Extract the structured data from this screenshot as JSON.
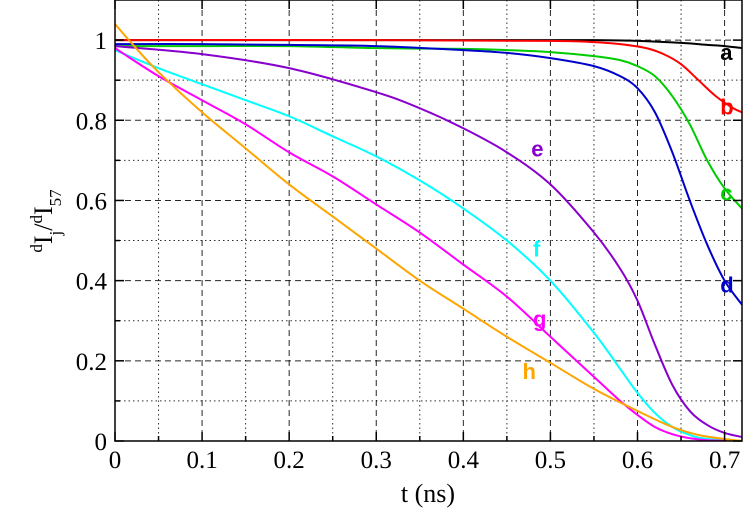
{
  "chart_data": {
    "type": "line",
    "title": "",
    "xlabel": "t (ns)",
    "ylabel": {
      "pre1": "d",
      "main1": "I",
      "sub1": "j",
      "slash": "/",
      "pre2": "d",
      "main2": "I",
      "sub2": "57"
    },
    "xlim": [
      0,
      0.72
    ],
    "ylim": [
      0,
      1.1
    ],
    "x_major_ticks": [
      0,
      0.1,
      0.2,
      0.3,
      0.4,
      0.5,
      0.6,
      0.7
    ],
    "x_tick_labels": [
      "0",
      "0.1",
      "0.2",
      "0.3",
      "0.4",
      "0.5",
      "0.6",
      "0.7"
    ],
    "x_minor_ticks": [
      0.05,
      0.15,
      0.25,
      0.35,
      0.45,
      0.55,
      0.65
    ],
    "y_major_ticks": [
      0,
      0.2,
      0.4,
      0.6,
      0.8,
      1.0
    ],
    "y_tick_labels": [
      "0",
      "0.2",
      "0.4",
      "0.6",
      "0.8",
      "1"
    ],
    "y_minor_ticks": [
      0.1,
      0.3,
      0.5,
      0.7,
      0.9
    ],
    "grid": true,
    "series": [
      {
        "name": "a",
        "color": "#000000",
        "label_pos": [
          0.695,
          0.95
        ],
        "points": [
          [
            0,
            1.0
          ],
          [
            0.2,
            1.0
          ],
          [
            0.4,
            1.0
          ],
          [
            0.55,
            1.0
          ],
          [
            0.6,
            0.998
          ],
          [
            0.65,
            0.993
          ],
          [
            0.68,
            0.988
          ],
          [
            0.7,
            0.985
          ],
          [
            0.72,
            0.98
          ]
        ]
      },
      {
        "name": "b",
        "color": "#ff0000",
        "label_pos": [
          0.695,
          0.815
        ],
        "points": [
          [
            0,
            1.0
          ],
          [
            0.3,
            1.0
          ],
          [
            0.5,
            0.998
          ],
          [
            0.55,
            0.995
          ],
          [
            0.58,
            0.99
          ],
          [
            0.61,
            0.98
          ],
          [
            0.63,
            0.965
          ],
          [
            0.65,
            0.94
          ],
          [
            0.67,
            0.9
          ],
          [
            0.69,
            0.86
          ],
          [
            0.71,
            0.83
          ],
          [
            0.72,
            0.82
          ]
        ]
      },
      {
        "name": "c",
        "color": "#00cc00",
        "label_pos": [
          0.695,
          0.6
        ],
        "points": [
          [
            0,
            0.985
          ],
          [
            0.1,
            0.985
          ],
          [
            0.2,
            0.985
          ],
          [
            0.3,
            0.98
          ],
          [
            0.4,
            0.978
          ],
          [
            0.45,
            0.975
          ],
          [
            0.5,
            0.97
          ],
          [
            0.55,
            0.96
          ],
          [
            0.58,
            0.95
          ],
          [
            0.6,
            0.935
          ],
          [
            0.62,
            0.91
          ],
          [
            0.64,
            0.86
          ],
          [
            0.66,
            0.79
          ],
          [
            0.68,
            0.7
          ],
          [
            0.7,
            0.63
          ],
          [
            0.72,
            0.58
          ]
        ]
      },
      {
        "name": "d",
        "color": "#0000cc",
        "label_pos": [
          0.695,
          0.37
        ],
        "points": [
          [
            0,
            0.99
          ],
          [
            0.1,
            0.99
          ],
          [
            0.2,
            0.988
          ],
          [
            0.3,
            0.985
          ],
          [
            0.4,
            0.975
          ],
          [
            0.45,
            0.968
          ],
          [
            0.5,
            0.955
          ],
          [
            0.55,
            0.935
          ],
          [
            0.58,
            0.91
          ],
          [
            0.6,
            0.88
          ],
          [
            0.62,
            0.82
          ],
          [
            0.64,
            0.72
          ],
          [
            0.66,
            0.6
          ],
          [
            0.68,
            0.49
          ],
          [
            0.7,
            0.4
          ],
          [
            0.72,
            0.34
          ]
        ]
      },
      {
        "name": "e",
        "color": "#8800cc",
        "label_pos": [
          0.478,
          0.71
        ],
        "points": [
          [
            0,
            0.985
          ],
          [
            0.1,
            0.965
          ],
          [
            0.2,
            0.93
          ],
          [
            0.3,
            0.87
          ],
          [
            0.35,
            0.83
          ],
          [
            0.4,
            0.78
          ],
          [
            0.45,
            0.72
          ],
          [
            0.5,
            0.64
          ],
          [
            0.55,
            0.52
          ],
          [
            0.58,
            0.43
          ],
          [
            0.6,
            0.35
          ],
          [
            0.62,
            0.24
          ],
          [
            0.64,
            0.14
          ],
          [
            0.66,
            0.075
          ],
          [
            0.68,
            0.04
          ],
          [
            0.7,
            0.02
          ],
          [
            0.72,
            0.01
          ]
        ]
      },
      {
        "name": "f",
        "color": "#00ffff",
        "label_pos": [
          0.48,
          0.46
        ],
        "points": [
          [
            0,
            0.975
          ],
          [
            0.05,
            0.93
          ],
          [
            0.1,
            0.89
          ],
          [
            0.15,
            0.85
          ],
          [
            0.2,
            0.81
          ],
          [
            0.25,
            0.76
          ],
          [
            0.3,
            0.71
          ],
          [
            0.35,
            0.65
          ],
          [
            0.4,
            0.58
          ],
          [
            0.45,
            0.5
          ],
          [
            0.5,
            0.4
          ],
          [
            0.55,
            0.27
          ],
          [
            0.58,
            0.18
          ],
          [
            0.6,
            0.12
          ],
          [
            0.62,
            0.07
          ],
          [
            0.64,
            0.035
          ],
          [
            0.66,
            0.015
          ],
          [
            0.68,
            0.005
          ],
          [
            0.72,
            0.0
          ]
        ]
      },
      {
        "name": "g",
        "color": "#ff00ff",
        "label_pos": [
          0.48,
          0.285
        ],
        "points": [
          [
            0,
            0.98
          ],
          [
            0.05,
            0.91
          ],
          [
            0.1,
            0.85
          ],
          [
            0.15,
            0.79
          ],
          [
            0.2,
            0.72
          ],
          [
            0.25,
            0.66
          ],
          [
            0.3,
            0.59
          ],
          [
            0.35,
            0.52
          ],
          [
            0.4,
            0.44
          ],
          [
            0.45,
            0.36
          ],
          [
            0.5,
            0.26
          ],
          [
            0.55,
            0.16
          ],
          [
            0.58,
            0.1
          ],
          [
            0.6,
            0.065
          ],
          [
            0.62,
            0.035
          ],
          [
            0.64,
            0.017
          ],
          [
            0.66,
            0.007
          ],
          [
            0.68,
            0.002
          ],
          [
            0.72,
            0.0
          ]
        ]
      },
      {
        "name": "h",
        "color": "#ffa500",
        "label_pos": [
          0.468,
          0.155
        ],
        "points": [
          [
            0,
            1.04
          ],
          [
            0.02,
            0.99
          ],
          [
            0.05,
            0.92
          ],
          [
            0.1,
            0.82
          ],
          [
            0.15,
            0.73
          ],
          [
            0.2,
            0.64
          ],
          [
            0.25,
            0.56
          ],
          [
            0.3,
            0.48
          ],
          [
            0.35,
            0.4
          ],
          [
            0.4,
            0.33
          ],
          [
            0.45,
            0.26
          ],
          [
            0.5,
            0.195
          ],
          [
            0.55,
            0.13
          ],
          [
            0.6,
            0.075
          ],
          [
            0.64,
            0.035
          ],
          [
            0.67,
            0.015
          ],
          [
            0.7,
            0.005
          ],
          [
            0.72,
            0.0
          ]
        ]
      }
    ]
  }
}
